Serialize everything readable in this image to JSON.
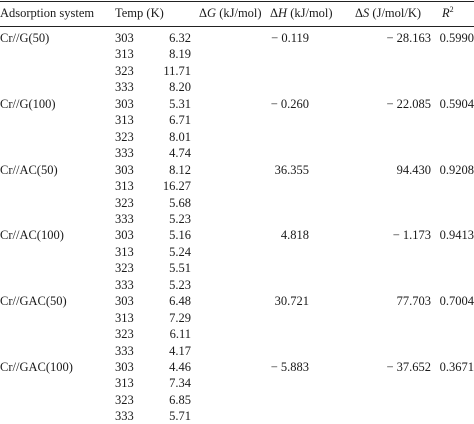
{
  "headers": {
    "system": "Adsorption system",
    "temp": "Temp (K)",
    "dg_prefix": "Δ",
    "dg_var": "G",
    "dg_unit": " (kJ/mol)",
    "dh_prefix": "Δ",
    "dh_var": "H",
    "dh_unit": " (kJ/mol)",
    "ds_prefix": "Δ",
    "ds_var": "S",
    "ds_unit": " (J/mol/K)",
    "r2_var": "R",
    "r2_sup": "2"
  },
  "groups": [
    {
      "system": "Cr//G(50)",
      "temps": [
        "303",
        "313",
        "323",
        "333"
      ],
      "dg": [
        "6.32",
        "8.19",
        "11.71",
        "8.20"
      ],
      "dh": "− 0.119",
      "ds": "− 28.163",
      "r2": "0.5990"
    },
    {
      "system": "Cr//G(100)",
      "temps": [
        "303",
        "313",
        "323",
        "333"
      ],
      "dg": [
        "5.31",
        "6.71",
        "8.01",
        "4.74"
      ],
      "dh": "− 0.260",
      "ds": "− 22.085",
      "r2": "0.5904"
    },
    {
      "system": "Cr//AC(50)",
      "temps": [
        "303",
        "313",
        "323",
        "333"
      ],
      "dg": [
        "8.12",
        "16.27",
        "5.68",
        "5.23"
      ],
      "dh": "36.355",
      "ds": "94.430",
      "r2": "0.9208"
    },
    {
      "system": "Cr//AC(100)",
      "temps": [
        "303",
        "313",
        "323",
        "333"
      ],
      "dg": [
        "5.16",
        "5.24",
        "5.51",
        "5.23"
      ],
      "dh": "4.818",
      "ds": "− 1.173",
      "r2": "0.9413"
    },
    {
      "system": "Cr//GAC(50)",
      "temps": [
        "303",
        "313",
        "323",
        "333"
      ],
      "dg": [
        "6.48",
        "7.29",
        "6.11",
        "4.17"
      ],
      "dh": "30.721",
      "ds": "77.703",
      "r2": "0.7004"
    },
    {
      "system": "Cr//GAC(100)",
      "temps": [
        "303",
        "313",
        "323",
        "333"
      ],
      "dg": [
        "4.46",
        "7.34",
        "6.85",
        "5.71"
      ],
      "dh": "− 5.883",
      "ds": "− 37.652",
      "r2": "0.3671"
    }
  ]
}
